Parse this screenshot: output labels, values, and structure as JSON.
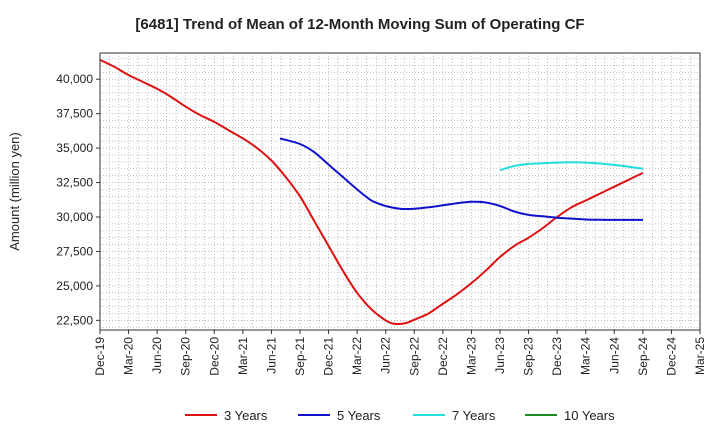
{
  "chart_data": {
    "type": "line",
    "title": "[6481]  Trend of Mean of 12-Month Moving Sum of Operating CF",
    "xlabel": "",
    "ylabel": "Amount (million yen)",
    "ylim": [
      21800,
      41900
    ],
    "yticks": [
      22500,
      25000,
      27500,
      30000,
      32500,
      35000,
      37500,
      40000
    ],
    "ytick_labels": [
      "22,500",
      "25,000",
      "27,500",
      "30,000",
      "32,500",
      "35,000",
      "37,500",
      "40,000"
    ],
    "xlim": [
      0,
      21
    ],
    "x_tick_labels": [
      "Dec-19",
      "Mar-20",
      "Jun-20",
      "Sep-20",
      "Dec-20",
      "Mar-21",
      "Jun-21",
      "Sep-21",
      "Dec-21",
      "Mar-22",
      "Jun-22",
      "Sep-22",
      "Dec-22",
      "Mar-23",
      "Jun-23",
      "Sep-23",
      "Dec-23",
      "Mar-24",
      "Jun-24",
      "Sep-24",
      "Dec-24",
      "Mar-25"
    ],
    "grid": true,
    "legend_position": "bottom",
    "series": [
      {
        "name": "3 Years",
        "color": "#dd1111",
        "points": [
          [
            0,
            41400
          ],
          [
            0.5,
            40900
          ],
          [
            1,
            40300
          ],
          [
            1.5,
            39800
          ],
          [
            2,
            39300
          ],
          [
            2.5,
            38700
          ],
          [
            3,
            38000
          ],
          [
            3.5,
            37400
          ],
          [
            4,
            36900
          ],
          [
            4.5,
            36300
          ],
          [
            5,
            35700
          ],
          [
            5.5,
            35000
          ],
          [
            6,
            34100
          ],
          [
            6.5,
            32900
          ],
          [
            7,
            31500
          ],
          [
            7.5,
            29700
          ],
          [
            8,
            27900
          ],
          [
            8.5,
            26100
          ],
          [
            9,
            24500
          ],
          [
            9.5,
            23300
          ],
          [
            10,
            22500
          ],
          [
            10.3,
            22250
          ],
          [
            10.7,
            22300
          ],
          [
            11,
            22550
          ],
          [
            11.5,
            23000
          ],
          [
            12,
            23700
          ],
          [
            12.5,
            24400
          ],
          [
            13,
            25200
          ],
          [
            13.5,
            26100
          ],
          [
            14,
            27100
          ],
          [
            14.5,
            27900
          ],
          [
            15,
            28500
          ],
          [
            15.5,
            29200
          ],
          [
            16,
            30000
          ],
          [
            16.5,
            30700
          ],
          [
            17,
            31200
          ],
          [
            17.5,
            31700
          ],
          [
            18,
            32200
          ],
          [
            18.5,
            32700
          ],
          [
            19,
            33200
          ]
        ]
      },
      {
        "name": "5 Years",
        "color": "#1111cc",
        "points": [
          [
            6.3,
            35700
          ],
          [
            7,
            35300
          ],
          [
            7.5,
            34700
          ],
          [
            8,
            33800
          ],
          [
            8.5,
            32900
          ],
          [
            9,
            32000
          ],
          [
            9.5,
            31200
          ],
          [
            10,
            30800
          ],
          [
            10.5,
            30600
          ],
          [
            11,
            30600
          ],
          [
            11.5,
            30700
          ],
          [
            12,
            30850
          ],
          [
            12.5,
            31000
          ],
          [
            13,
            31100
          ],
          [
            13.5,
            31050
          ],
          [
            14,
            30800
          ],
          [
            14.5,
            30400
          ],
          [
            15,
            30150
          ],
          [
            15.5,
            30050
          ],
          [
            16,
            29950
          ],
          [
            16.5,
            29880
          ],
          [
            17,
            29820
          ],
          [
            17.5,
            29800
          ],
          [
            18,
            29790
          ],
          [
            18.5,
            29790
          ],
          [
            19,
            29790
          ]
        ]
      },
      {
        "name": "7 Years",
        "color": "#22dddd",
        "points": [
          [
            14,
            33400
          ],
          [
            14.5,
            33700
          ],
          [
            15,
            33850
          ],
          [
            15.5,
            33900
          ],
          [
            16,
            33950
          ],
          [
            16.5,
            33970
          ],
          [
            17,
            33950
          ],
          [
            17.5,
            33880
          ],
          [
            18,
            33780
          ],
          [
            18.5,
            33650
          ],
          [
            19,
            33500
          ]
        ]
      },
      {
        "name": "10 Years",
        "color": "#228822",
        "points": []
      }
    ]
  }
}
